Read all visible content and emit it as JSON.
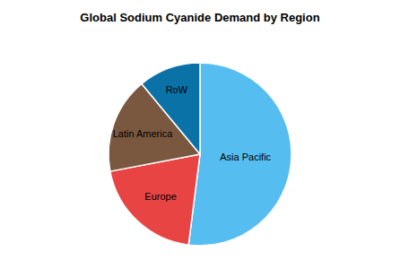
{
  "chart_data": {
    "type": "pie",
    "title": "Global Sodium Cyanide Demand by Region",
    "categories": [
      "Asia Pacific",
      "Europe",
      "Latin America",
      "RoW"
    ],
    "values": [
      52,
      20,
      17,
      11
    ],
    "colors": [
      "#56bdf0",
      "#e84444",
      "#7a5840",
      "#0a72a6"
    ],
    "data_labels": false
  }
}
